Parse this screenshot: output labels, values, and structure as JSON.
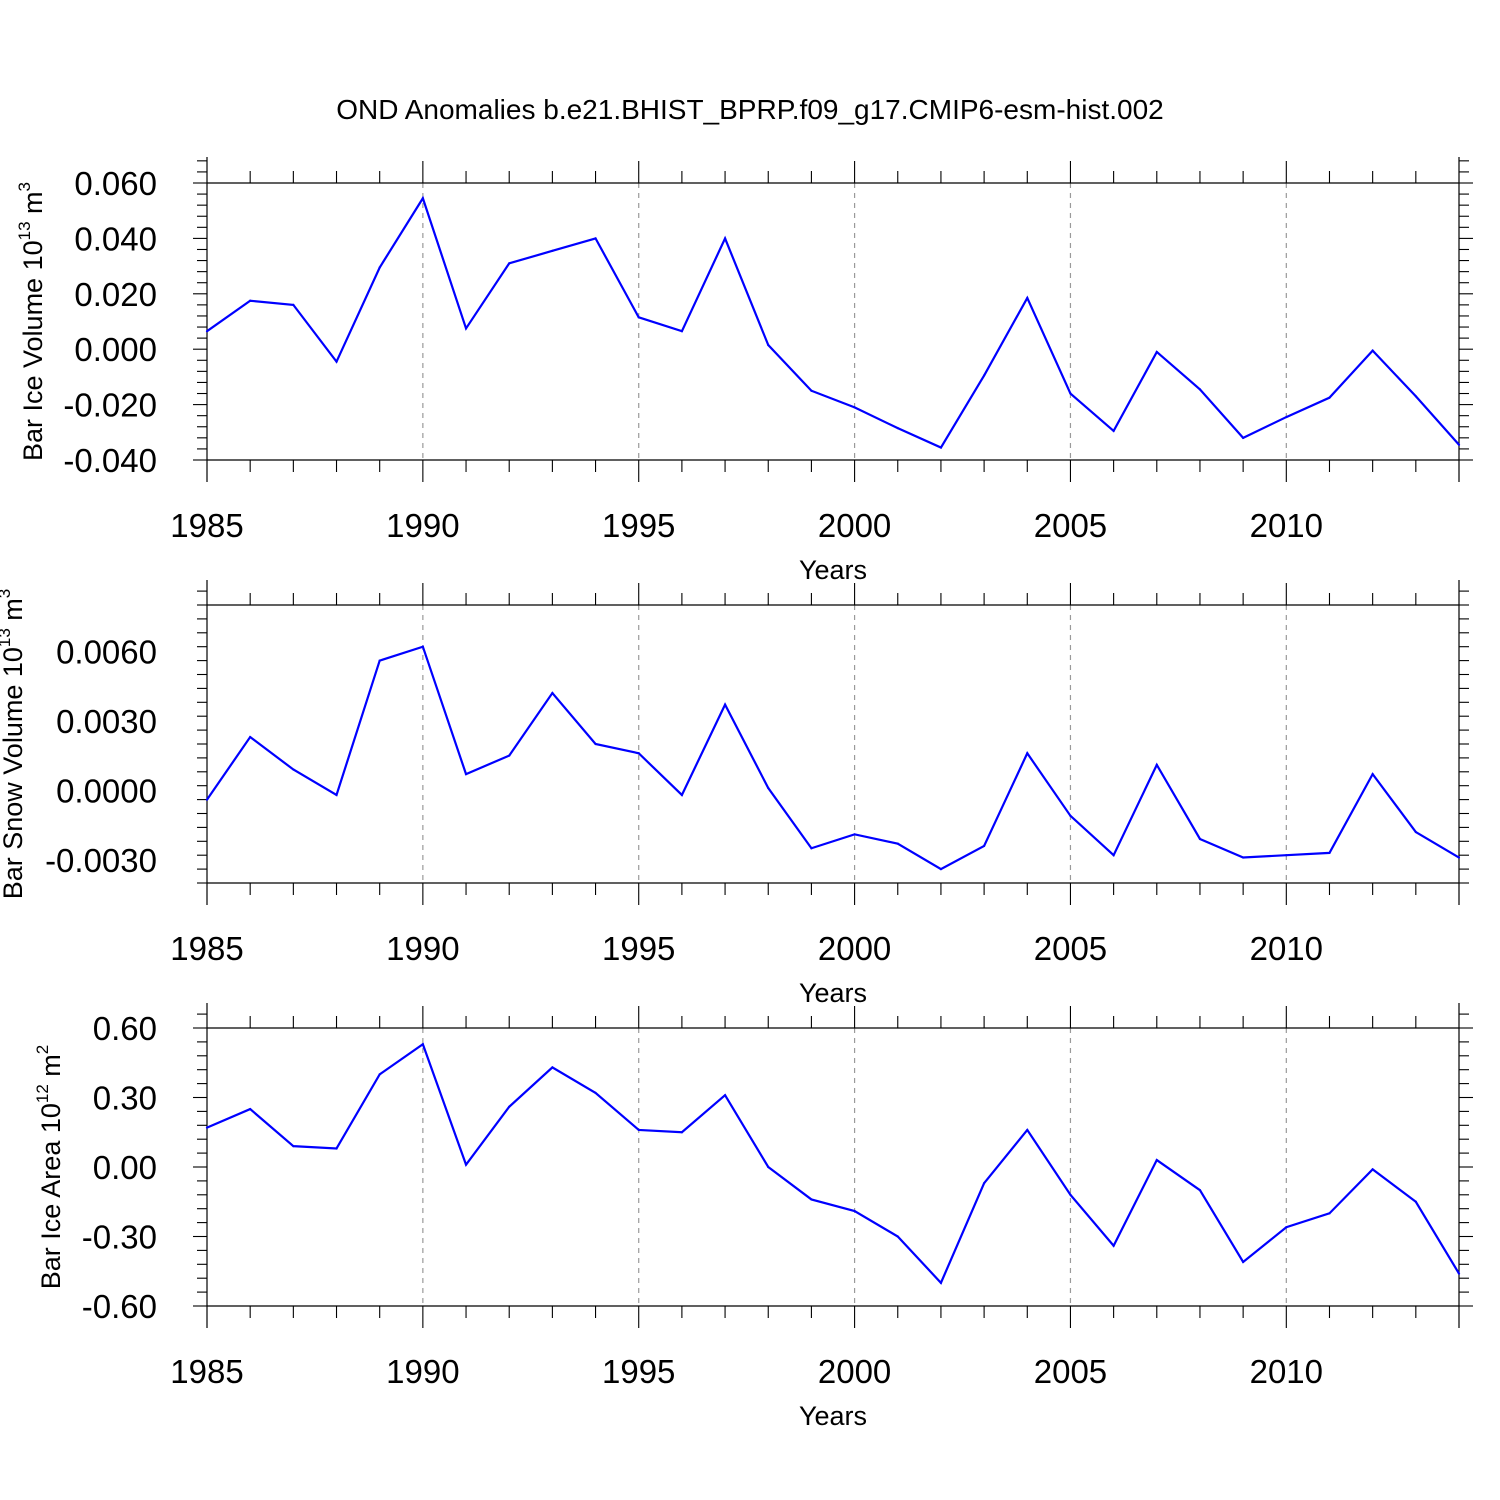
{
  "title": "OND Anomalies b.e21.BHIST_BPRP.f09_g17.CMIP6-esm-hist.002",
  "colors": {
    "line": "#0000ff",
    "grid": "#9a9a9a",
    "axis": "#000000"
  },
  "chart_data": [
    {
      "type": "line",
      "ylabel": {
        "base": "Bar Ice Volume 10",
        "exp": "13",
        "unit": " m",
        "unit_exp": "3"
      },
      "xlabel": "Years",
      "xlim": [
        1985,
        2014
      ],
      "ylim": [
        -0.04,
        0.06
      ],
      "xticks": [
        1985,
        1990,
        1995,
        2000,
        2005,
        2010
      ],
      "xtick_labels": [
        "1985",
        "1990",
        "1995",
        "2000",
        "2005",
        "2010"
      ],
      "yticks": [
        -0.04,
        -0.02,
        0.0,
        0.02,
        0.04,
        0.06
      ],
      "ytick_labels": [
        "-0.040",
        "-0.020",
        "0.000",
        "0.020",
        "0.040",
        "0.060"
      ],
      "grid": "vertical dashed at major x ticks",
      "x": [
        1985,
        1986,
        1987,
        1988,
        1989,
        1990,
        1991,
        1992,
        1993,
        1994,
        1995,
        1996,
        1997,
        1998,
        1999,
        2000,
        2001,
        2002,
        2003,
        2004,
        2005,
        2006,
        2007,
        2008,
        2009,
        2010,
        2011,
        2012,
        2013,
        2014
      ],
      "values": [
        0.0065,
        0.0175,
        0.016,
        -0.0045,
        0.0295,
        0.0545,
        0.0075,
        0.031,
        0.0355,
        0.04,
        0.0115,
        0.0065,
        0.04,
        0.0015,
        -0.015,
        -0.021,
        -0.0285,
        -0.0355,
        -0.0095,
        0.0185,
        -0.016,
        -0.0295,
        -0.001,
        -0.0145,
        -0.032,
        -0.0245,
        -0.0175,
        -0.0005,
        -0.017,
        -0.0345
      ]
    },
    {
      "type": "line",
      "ylabel": {
        "base": "Bar Snow Volume 10",
        "exp": "13",
        "unit": " m",
        "unit_exp": "3"
      },
      "xlabel": "Years",
      "xlim": [
        1985,
        2014
      ],
      "ylim": [
        -0.004,
        0.008
      ],
      "xticks": [
        1985,
        1990,
        1995,
        2000,
        2005,
        2010
      ],
      "xtick_labels": [
        "1985",
        "1990",
        "1995",
        "2000",
        "2005",
        "2010"
      ],
      "yticks": [
        -0.003,
        0.0,
        0.003,
        0.006
      ],
      "ytick_labels": [
        "-0.0030",
        "0.0000",
        "0.0030",
        "0.0060"
      ],
      "grid": "vertical dashed at major x ticks",
      "x": [
        1985,
        1986,
        1987,
        1988,
        1989,
        1990,
        1991,
        1992,
        1993,
        1994,
        1995,
        1996,
        1997,
        1998,
        1999,
        2000,
        2001,
        2002,
        2003,
        2004,
        2005,
        2006,
        2007,
        2008,
        2009,
        2010,
        2011,
        2012,
        2013,
        2014
      ],
      "values": [
        -0.0004,
        0.0023,
        0.0009,
        -0.0002,
        0.0056,
        0.0062,
        0.0007,
        0.0015,
        0.0042,
        0.002,
        0.0016,
        -0.0002,
        0.0037,
        0.0001,
        -0.0025,
        -0.0019,
        -0.0023,
        -0.0034,
        -0.0024,
        0.0016,
        -0.0011,
        -0.0028,
        0.0011,
        -0.0021,
        -0.0029,
        -0.0028,
        -0.0027,
        0.0007,
        -0.0018,
        -0.0029
      ]
    },
    {
      "type": "line",
      "ylabel": {
        "base": "Bar Ice Area 10",
        "exp": "12",
        "unit": " m",
        "unit_exp": "2"
      },
      "xlabel": "Years",
      "xlim": [
        1985,
        2014
      ],
      "ylim": [
        -0.6,
        0.6
      ],
      "xticks": [
        1985,
        1990,
        1995,
        2000,
        2005,
        2010
      ],
      "xtick_labels": [
        "1985",
        "1990",
        "1995",
        "2000",
        "2005",
        "2010"
      ],
      "yticks": [
        -0.6,
        -0.3,
        0.0,
        0.3,
        0.6
      ],
      "ytick_labels": [
        "-0.60",
        "-0.30",
        "0.00",
        "0.30",
        "0.60"
      ],
      "grid": "vertical dashed at major x ticks",
      "x": [
        1985,
        1986,
        1987,
        1988,
        1989,
        1990,
        1991,
        1992,
        1993,
        1994,
        1995,
        1996,
        1997,
        1998,
        1999,
        2000,
        2001,
        2002,
        2003,
        2004,
        2005,
        2006,
        2007,
        2008,
        2009,
        2010,
        2011,
        2012,
        2013,
        2014
      ],
      "values": [
        0.17,
        0.25,
        0.09,
        0.08,
        0.4,
        0.53,
        0.01,
        0.26,
        0.43,
        0.32,
        0.16,
        0.15,
        0.31,
        0.0,
        -0.14,
        -0.19,
        -0.3,
        -0.5,
        -0.07,
        0.16,
        -0.12,
        -0.34,
        0.03,
        -0.1,
        -0.41,
        -0.26,
        -0.2,
        -0.01,
        -0.15,
        -0.46
      ]
    }
  ]
}
